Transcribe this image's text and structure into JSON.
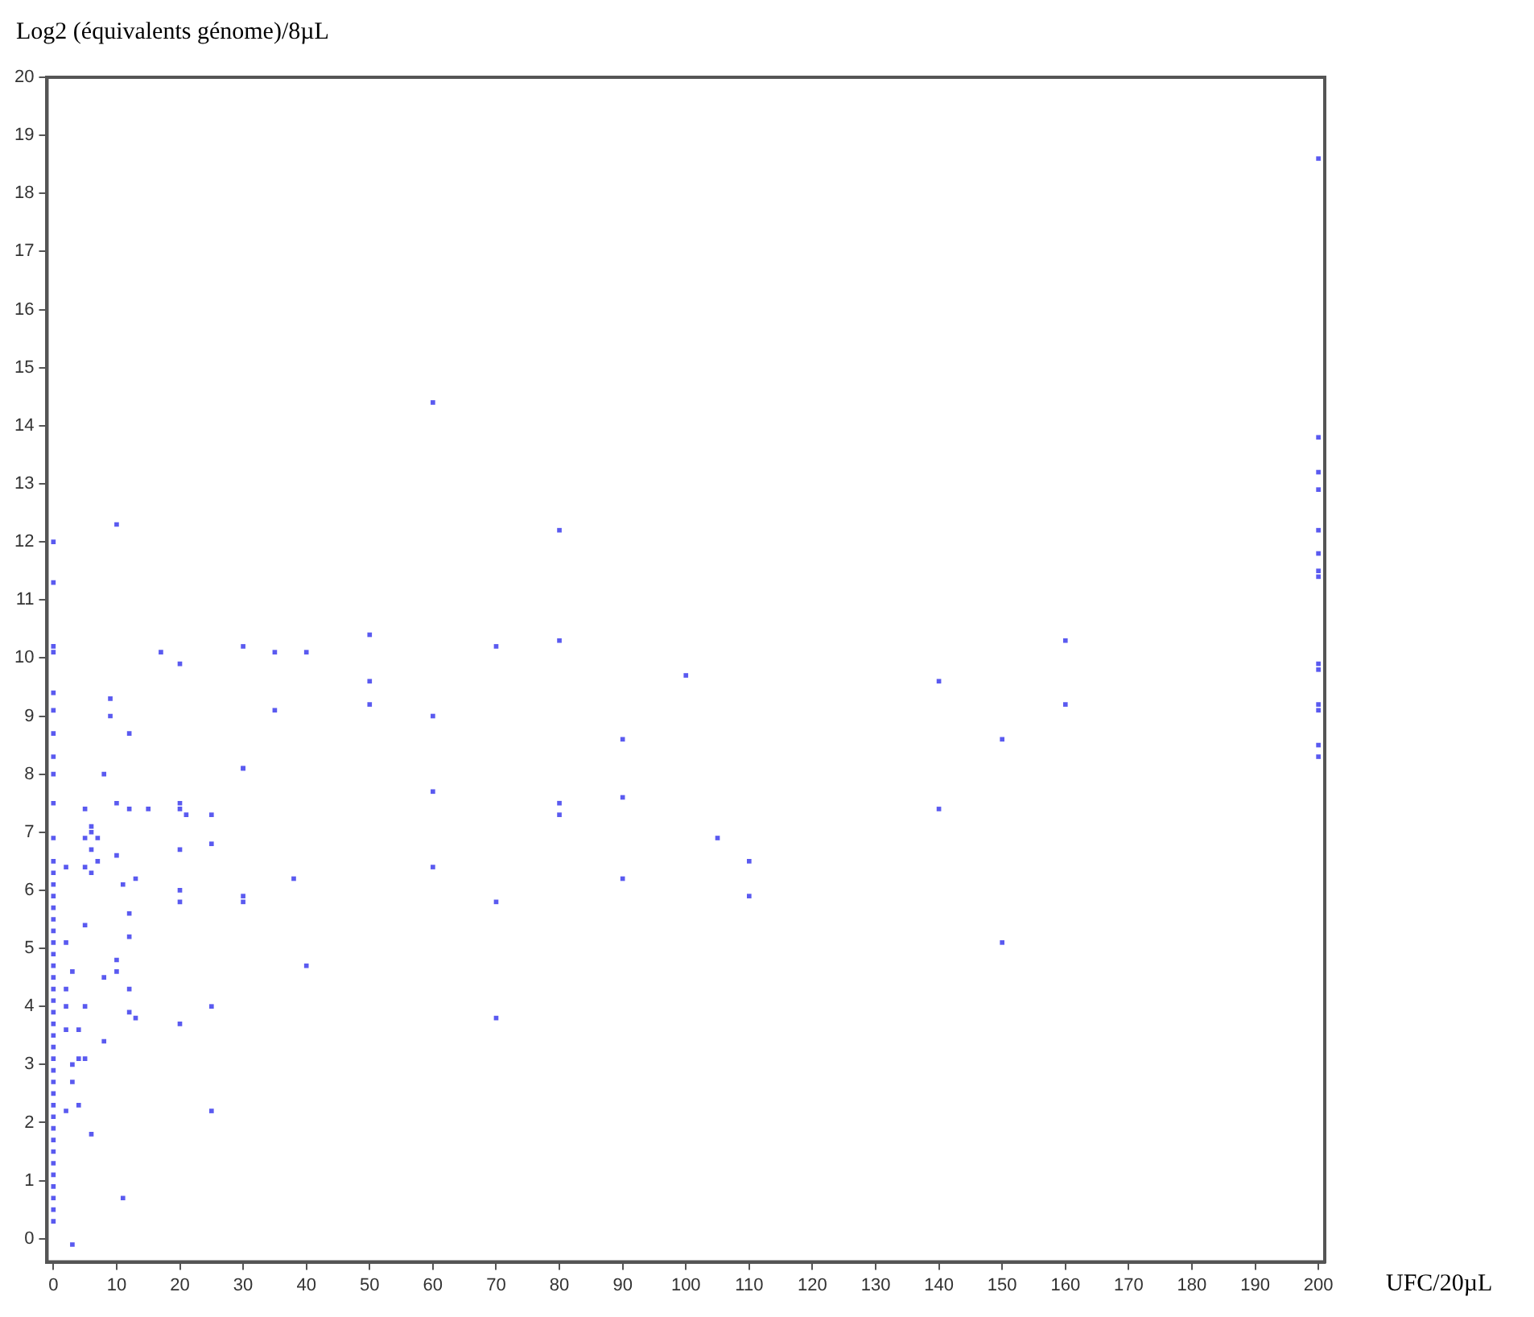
{
  "chart_data": {
    "type": "scatter",
    "ylabel": "Log2 (équivalents génome)/8µL",
    "xlabel": "UFC/20µL",
    "xlim": [
      -1,
      201
    ],
    "ylim": [
      -0.4,
      20
    ],
    "xticks": [
      0,
      10,
      20,
      30,
      40,
      50,
      60,
      70,
      80,
      90,
      100,
      110,
      120,
      130,
      140,
      150,
      160,
      170,
      180,
      190,
      200
    ],
    "yticks": [
      0,
      1,
      2,
      3,
      4,
      5,
      6,
      7,
      8,
      9,
      10,
      11,
      12,
      13,
      14,
      15,
      16,
      17,
      18,
      19,
      20
    ],
    "grid": false,
    "legend": false,
    "marker": "square",
    "series": [
      {
        "color": "#5a5af0",
        "x": [
          0,
          0,
          0,
          0,
          0,
          0,
          0,
          0,
          0,
          0,
          0,
          0,
          0,
          0,
          0,
          0,
          0,
          0,
          0,
          0,
          0,
          0,
          0,
          0,
          0,
          0,
          0,
          0,
          0,
          0,
          0,
          0,
          0,
          0,
          0,
          0,
          0,
          0,
          0,
          0,
          0,
          0,
          0,
          2,
          2,
          3,
          2,
          2,
          2,
          3,
          3,
          2,
          4,
          4,
          4,
          5,
          6,
          3,
          5,
          5,
          6,
          6,
          6,
          7,
          7,
          5,
          6,
          5,
          5,
          8,
          9,
          9,
          10,
          10,
          8,
          8,
          10,
          10,
          11,
          11,
          12,
          12,
          12,
          12,
          12,
          12,
          13,
          13,
          15,
          17,
          20,
          20,
          20,
          21,
          20,
          20,
          20,
          20,
          25,
          25,
          25,
          25,
          30,
          30,
          30,
          30,
          30,
          35,
          35,
          38,
          40,
          40,
          10,
          50,
          50,
          50,
          60,
          60,
          60,
          60,
          70,
          70,
          70,
          80,
          80,
          80,
          80,
          90,
          90,
          90,
          100,
          105,
          110,
          110,
          140,
          140,
          150,
          150,
          160,
          160,
          200,
          200,
          200,
          200,
          200,
          200,
          200,
          200,
          200,
          200,
          200,
          200,
          200,
          200
        ],
        "values": [
          0.3,
          0.5,
          0.7,
          0.9,
          1.1,
          1.3,
          1.5,
          1.7,
          1.9,
          2.1,
          2.3,
          2.5,
          2.7,
          2.9,
          3.1,
          3.3,
          3.5,
          3.7,
          3.9,
          4.1,
          4.3,
          4.5,
          4.7,
          4.9,
          5.1,
          5.3,
          5.5,
          5.7,
          5.9,
          6.1,
          6.3,
          6.5,
          6.9,
          7.5,
          8,
          8.3,
          8.7,
          9.1,
          9.4,
          10.1,
          10.2,
          11.3,
          12,
          6.4,
          5.1,
          4.6,
          4.3,
          4,
          3.6,
          3,
          2.7,
          2.2,
          2.3,
          3.6,
          3.1,
          3.1,
          1.8,
          -0.1,
          7.4,
          6.9,
          7.1,
          7,
          6.7,
          6.9,
          6.5,
          6.4,
          6.3,
          5.4,
          4,
          8,
          9.3,
          9,
          7.5,
          6.6,
          4.5,
          3.4,
          4.8,
          4.6,
          6.1,
          0.7,
          8.7,
          7.4,
          5.6,
          5.2,
          4.3,
          3.9,
          6.2,
          3.8,
          7.4,
          10.1,
          9.9,
          7.5,
          7.4,
          7.3,
          6.7,
          6,
          5.8,
          3.7,
          7.3,
          6.8,
          4,
          2.2,
          10.2,
          8.1,
          8.1,
          5.9,
          5.8,
          10.1,
          9.1,
          6.2,
          10.1,
          4.7,
          12.3,
          10.4,
          9.6,
          9.2,
          14.4,
          9,
          7.7,
          6.4,
          10.2,
          5.8,
          3.8,
          10.3,
          12.2,
          7.5,
          7.3,
          8.6,
          7.6,
          6.2,
          9.7,
          6.9,
          6.5,
          5.9,
          9.6,
          7.4,
          8.6,
          5.1,
          10.3,
          9.2,
          18.6,
          13.8,
          13.2,
          12.9,
          12.2,
          11.8,
          11.5,
          11.4,
          9.9,
          9.8,
          9.2,
          9.1,
          8.5,
          8.3
        ]
      }
    ]
  }
}
